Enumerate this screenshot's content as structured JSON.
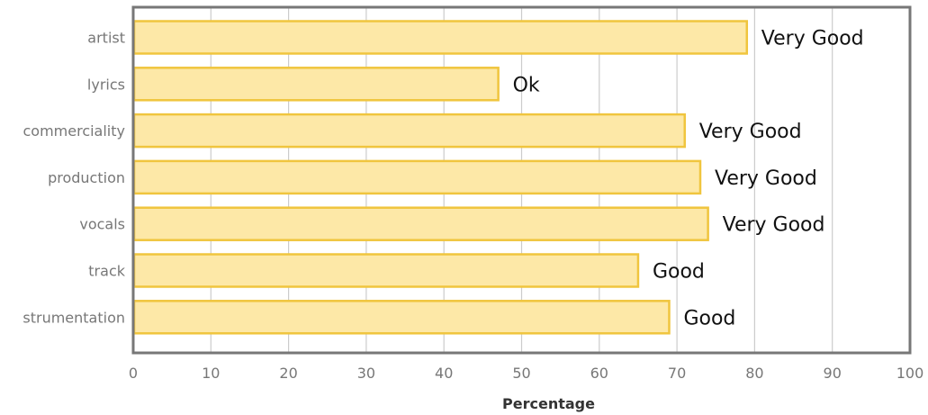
{
  "chart_data": {
    "type": "bar",
    "orientation": "horizontal",
    "categories": [
      "artist",
      "lyrics",
      "commerciality",
      "production",
      "vocals",
      "track",
      "strumentation"
    ],
    "values": [
      79,
      47,
      71,
      73,
      74,
      65,
      69
    ],
    "bar_labels": [
      "Very Good",
      "Ok",
      "Very Good",
      "Very Good",
      "Very Good",
      "Good",
      "Good"
    ],
    "xlabel": "Percentage",
    "ylabel": "",
    "title": "",
    "xlim": [
      0,
      100
    ],
    "xticks": [
      0,
      10,
      20,
      30,
      40,
      50,
      60,
      70,
      80,
      90,
      100
    ],
    "grid": "vertical",
    "colors": {
      "bar_fill": "#fde8a7",
      "bar_stroke": "#f0c53e",
      "grid": "#cccccc",
      "frame": "#777777"
    }
  }
}
